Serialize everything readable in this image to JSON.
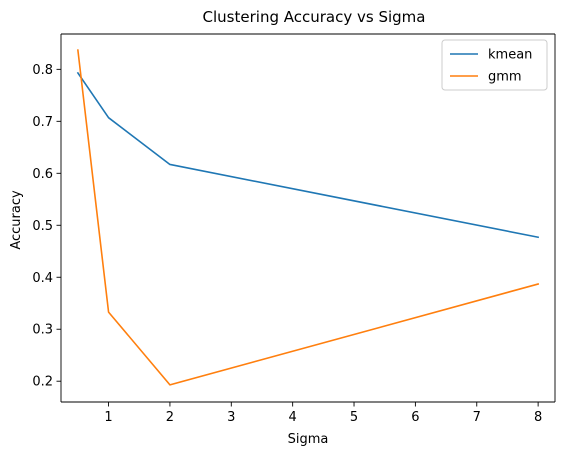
{
  "chart_data": {
    "type": "line",
    "title": "Clustering Accuracy vs Sigma",
    "xlabel": "Sigma",
    "ylabel": "Accuracy",
    "x": [
      0.5,
      1,
      2,
      8
    ],
    "xlim": [
      0.225,
      8.275
    ],
    "ylim": [
      0.16,
      0.868
    ],
    "xticks": [
      1,
      2,
      3,
      4,
      5,
      6,
      7,
      8
    ],
    "yticks": [
      0.2,
      0.3,
      0.4,
      0.5,
      0.6,
      0.7,
      0.8
    ],
    "grid": false,
    "legend_position": "top-right",
    "series": [
      {
        "name": "kmean",
        "color": "#1f77b4",
        "values": [
          0.793,
          0.707,
          0.617,
          0.477
        ]
      },
      {
        "name": "gmm",
        "color": "#ff7f0e",
        "values": [
          0.837,
          0.333,
          0.193,
          0.387
        ]
      }
    ]
  }
}
